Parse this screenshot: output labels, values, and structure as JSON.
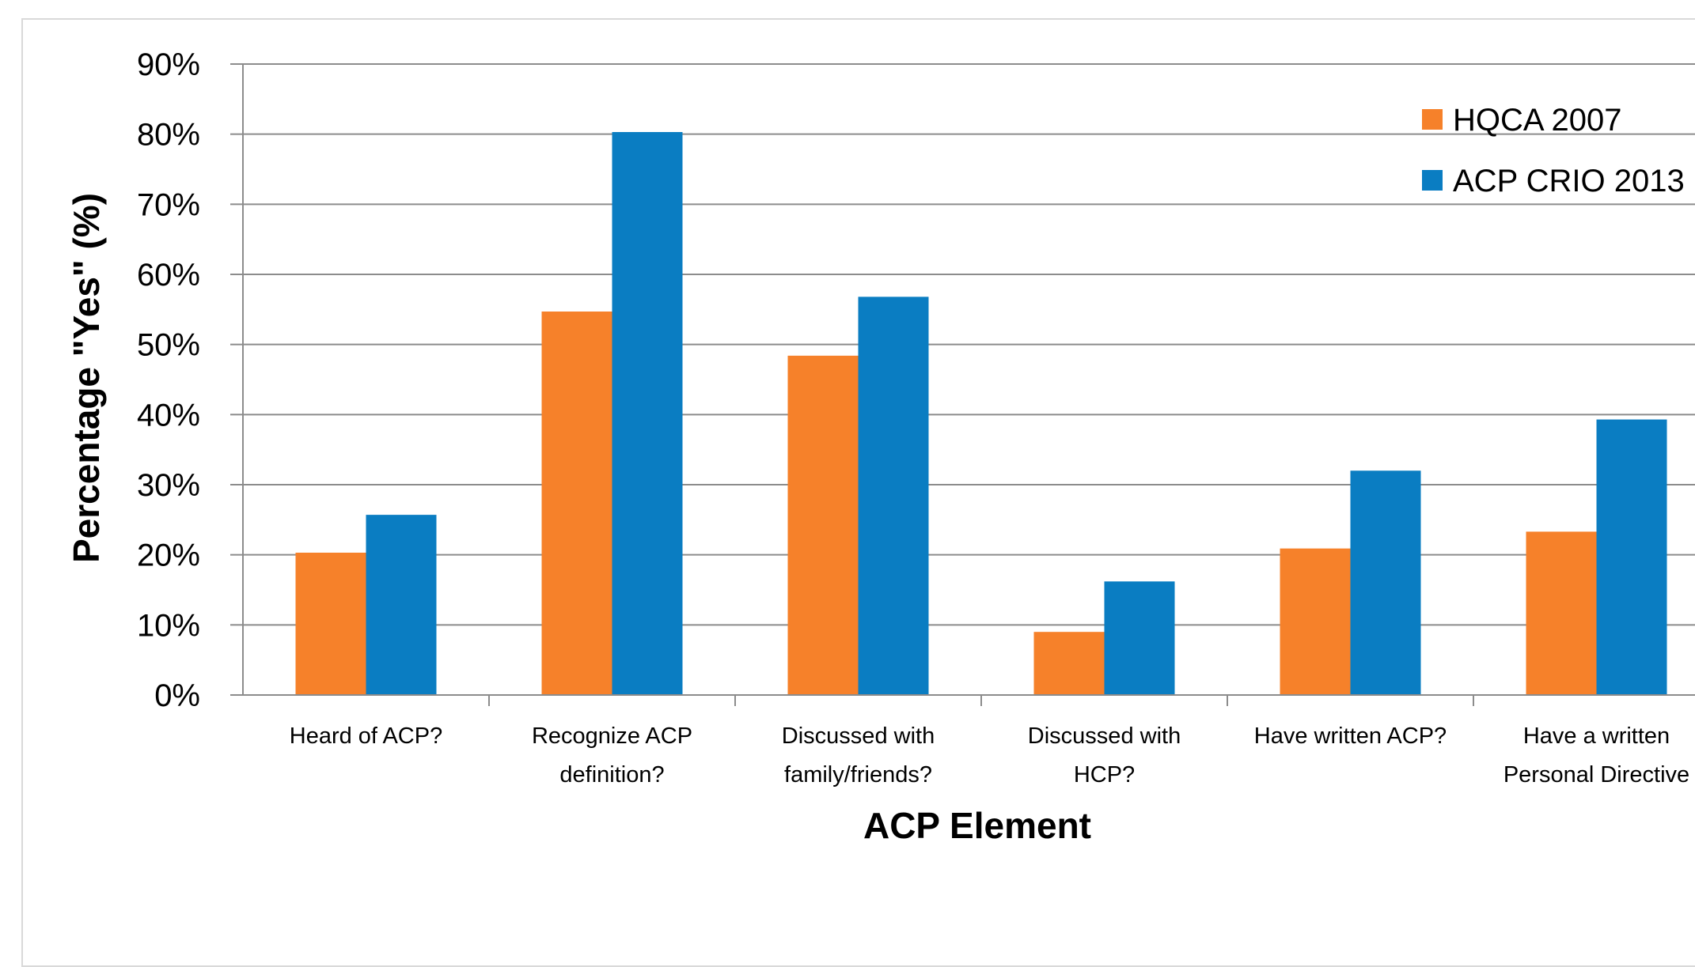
{
  "chart_data": {
    "type": "bar",
    "title": "",
    "xlabel": "ACP Element",
    "ylabel": "Percentage \"Yes\" (%)",
    "ylim": [
      0,
      90
    ],
    "yticks": [
      "0%",
      "10%",
      "20%",
      "30%",
      "40%",
      "50%",
      "60%",
      "70%",
      "80%",
      "90%"
    ],
    "grid": true,
    "legend_position": "top-right",
    "categories": [
      [
        "Heard of ACP?"
      ],
      [
        "Recognize ACP",
        "definition?"
      ],
      [
        "Discussed with",
        "family/friends?"
      ],
      [
        "Discussed with",
        "HCP?"
      ],
      [
        "Have written ACP?"
      ],
      [
        "Have a written",
        "Personal Directive"
      ]
    ],
    "series": [
      {
        "name": "HQCA 2007",
        "color": "#F6812A",
        "values": [
          20.3,
          54.7,
          48.4,
          9.0,
          20.9,
          23.3
        ]
      },
      {
        "name": "ACP CRIO 2013",
        "color": "#0A7DC2",
        "values": [
          25.7,
          80.3,
          56.8,
          16.2,
          32.0,
          39.3
        ]
      }
    ]
  }
}
